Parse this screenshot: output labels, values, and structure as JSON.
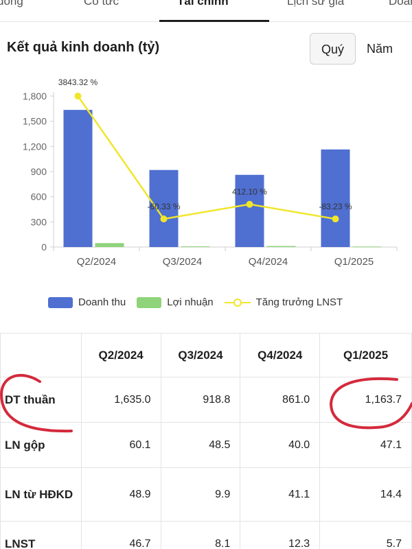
{
  "tabs": [
    {
      "label": "đông"
    },
    {
      "label": "Cổ tức"
    },
    {
      "label": "Tài chính"
    },
    {
      "label": "Lịch sử giá"
    },
    {
      "label": "Doanh"
    }
  ],
  "section": {
    "title": "Kết quả kinh doanh (tỷ)",
    "periods": [
      {
        "label": "Quý",
        "active": true
      },
      {
        "label": "Năm",
        "active": false
      }
    ]
  },
  "legend": {
    "revenue": "Doanh thu",
    "profit": "Lợi nhuận",
    "growth": "Tăng trưởng LNST"
  },
  "chart_data": {
    "type": "bar",
    "categories": [
      "Q2/2024",
      "Q3/2024",
      "Q4/2024",
      "Q1/2025"
    ],
    "series": [
      {
        "name": "Doanh thu",
        "kind": "bar",
        "color": "#4f6fd1",
        "values": [
          1635.0,
          918.8,
          861.0,
          1163.7
        ]
      },
      {
        "name": "Lợi nhuận",
        "kind": "bar",
        "color": "#8fd37a",
        "values": [
          46.7,
          8.1,
          12.3,
          5.7
        ]
      },
      {
        "name": "Tăng trưởng LNST",
        "kind": "line",
        "color": "#f0e62a",
        "values": [
          1800,
          335,
          510,
          335
        ],
        "labels": [
          "3843.32 %",
          "-60.33 %",
          "412.10 %",
          "-83.23 %"
        ]
      }
    ],
    "yticks": [
      "0",
      "300",
      "600",
      "900",
      "1,200",
      "1,500",
      "1,800"
    ],
    "ylim": [
      0,
      1800
    ],
    "grid": false,
    "legend": "bottom"
  },
  "table": {
    "headers": [
      "",
      "Q2/2024",
      "Q3/2024",
      "Q4/2024",
      "Q1/2025"
    ],
    "rows": [
      {
        "label": "DT thuần",
        "values": [
          "1,635.0",
          "918.8",
          "861.0",
          "1,163.7"
        ]
      },
      {
        "label": "LN gộp",
        "values": [
          "60.1",
          "48.5",
          "40.0",
          "47.1"
        ]
      },
      {
        "label": "LN từ HĐKD",
        "values": [
          "48.9",
          "9.9",
          "41.1",
          "14.4"
        ]
      },
      {
        "label": "LNST",
        "values": [
          "46.7",
          "8.1",
          "12.3",
          "5.7"
        ]
      }
    ]
  },
  "colors": {
    "revenue_bar": "#4f6fd1",
    "profit_bar": "#8fd37a",
    "growth_line": "#f0e62a",
    "annotation": "#d42a3c"
  }
}
